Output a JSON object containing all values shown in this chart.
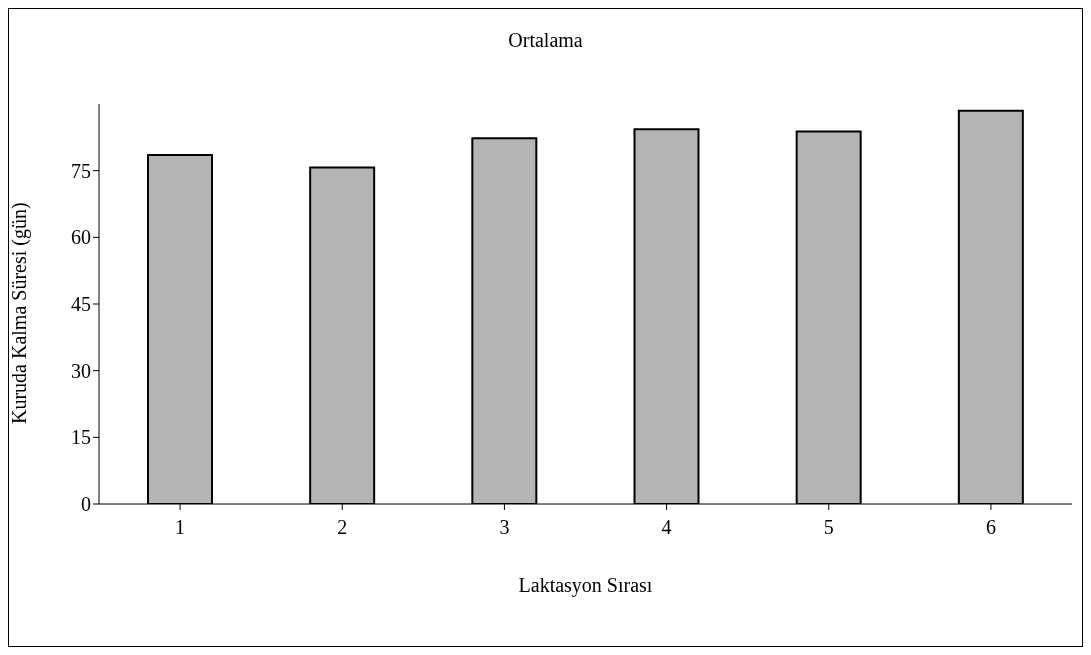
{
  "chart_data": {
    "type": "bar",
    "title": "Ortalama",
    "xlabel": "Laktasyon Sırası",
    "ylabel": "Kuruda Kalma Süresi (gün)",
    "categories": [
      "1",
      "2",
      "3",
      "4",
      "5",
      "6"
    ],
    "values": [
      78.5,
      75.7,
      82.3,
      84.3,
      83.8,
      88.5
    ],
    "color": "#b4b4b4",
    "ylim": [
      0,
      90
    ],
    "yticks": [
      0,
      15,
      30,
      45,
      60,
      75
    ],
    "grid": false,
    "legend": false
  }
}
